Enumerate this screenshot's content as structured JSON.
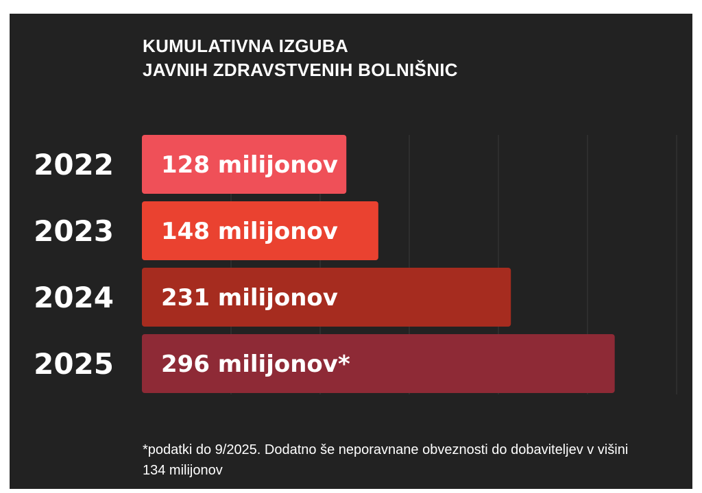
{
  "chart_data": {
    "type": "bar",
    "orientation": "horizontal",
    "title_lines": [
      "KUMULATIVNA IZGUBA",
      "JAVNIH ZDRAVSTVENIH BOLNIŠNIC"
    ],
    "categories": [
      "2022",
      "2023",
      "2024",
      "2025"
    ],
    "values": [
      128,
      148,
      231,
      296
    ],
    "data_labels": [
      "128 milijonov",
      "148 milijonov",
      "231 milijonov",
      "296 milijonov*"
    ],
    "bar_colors": [
      "#ef5058",
      "#ea4230",
      "#a62c1f",
      "#8e2a36"
    ],
    "xlim": [
      0,
      350
    ],
    "grid": true,
    "legend": "none",
    "footnote": "*podatki do 9/2025. Dodatno še neporavnane obveznosti do dobaviteljev v višini 134 milijonov"
  },
  "colors": {
    "background": "#222222",
    "text": "#ffffff",
    "gridline": "#3a3a3a"
  }
}
